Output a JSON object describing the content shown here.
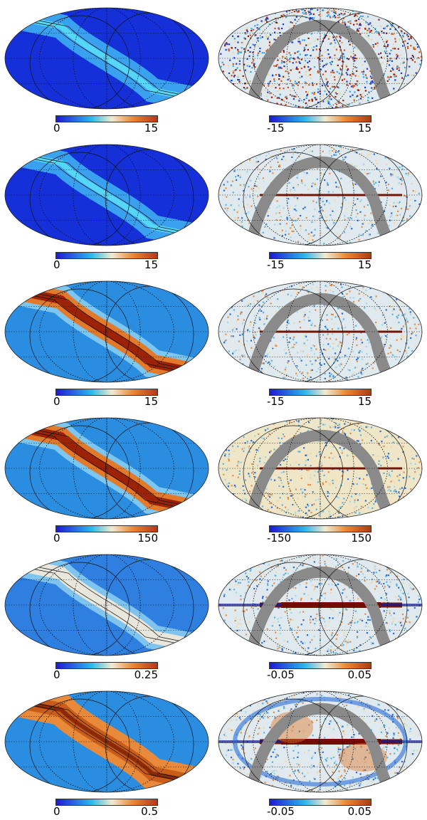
{
  "figure": {
    "rows": [
      {
        "left": {
          "min": "0",
          "max": "15",
          "style": "band-thin"
        },
        "right": {
          "min": "-15",
          "max": "15",
          "style": "noise-strong"
        }
      },
      {
        "left": {
          "min": "0",
          "max": "15",
          "style": "band-thin"
        },
        "right": {
          "min": "-15",
          "max": "15",
          "style": "noise-plane"
        }
      },
      {
        "left": {
          "min": "0",
          "max": "15",
          "style": "band-hot"
        },
        "right": {
          "min": "-15",
          "max": "15",
          "style": "noise-plane"
        }
      },
      {
        "left": {
          "min": "0",
          "max": "150",
          "style": "band-hot"
        },
        "right": {
          "min": "-150",
          "max": "150",
          "style": "noise-light"
        }
      },
      {
        "left": {
          "min": "0",
          "max": "0.25",
          "style": "band-white"
        },
        "right": {
          "min": "-0.05",
          "max": "0.05",
          "style": "noise-galaxy"
        }
      },
      {
        "left": {
          "min": "0",
          "max": "0.5",
          "style": "band-orange"
        },
        "right": {
          "min": "-0.05",
          "max": "0.05",
          "style": "noise-galaxy-strong"
        }
      }
    ]
  },
  "colors": {
    "map_cold": "#1a1ad6",
    "map_mid": "#2fb8e8",
    "map_hot": "#b23a10",
    "mask_gray": "#8a8a8a"
  }
}
